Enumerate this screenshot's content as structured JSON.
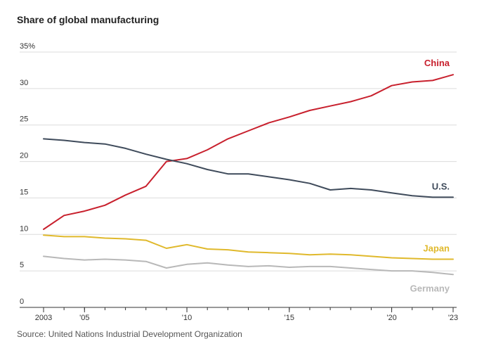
{
  "chart_data": {
    "type": "line",
    "title": "Share of global manufacturing",
    "source": "Source: United Nations Industrial Development Organization",
    "xlabel": "",
    "ylabel": "",
    "ylim": [
      0,
      35
    ],
    "yticks": [
      {
        "value": 0,
        "label": "0"
      },
      {
        "value": 5,
        "label": "5"
      },
      {
        "value": 10,
        "label": "10"
      },
      {
        "value": 15,
        "label": "15"
      },
      {
        "value": 20,
        "label": "20"
      },
      {
        "value": 25,
        "label": "25"
      },
      {
        "value": 30,
        "label": "30"
      },
      {
        "value": 35,
        "label": "35%"
      }
    ],
    "xticks": [
      {
        "value": 2003,
        "label": "2003"
      },
      {
        "value": 2005,
        "label": "'05"
      },
      {
        "value": 2010,
        "label": "'10"
      },
      {
        "value": 2015,
        "label": "'15"
      },
      {
        "value": 2020,
        "label": "'20"
      },
      {
        "value": 2023,
        "label": "'23"
      }
    ],
    "x": [
      2003,
      2004,
      2005,
      2006,
      2007,
      2008,
      2009,
      2010,
      2011,
      2012,
      2013,
      2014,
      2015,
      2016,
      2017,
      2018,
      2019,
      2020,
      2021,
      2022,
      2023
    ],
    "series": [
      {
        "name": "China",
        "color": "#c8202d",
        "values": [
          10.7,
          12.6,
          13.2,
          14.0,
          15.4,
          16.6,
          20.0,
          20.4,
          21.6,
          23.1,
          24.2,
          25.3,
          26.1,
          27.0,
          27.6,
          28.2,
          29.0,
          30.4,
          30.9,
          31.1,
          31.9
        ]
      },
      {
        "name": "U.S.",
        "color": "#3f4b5b",
        "values": [
          23.1,
          22.9,
          22.6,
          22.4,
          21.8,
          21.0,
          20.3,
          19.7,
          18.9,
          18.3,
          18.3,
          17.9,
          17.5,
          17.0,
          16.1,
          16.3,
          16.1,
          15.7,
          15.3,
          15.1,
          15.1
        ]
      },
      {
        "name": "Japan",
        "color": "#e0b92c",
        "values": [
          9.9,
          9.7,
          9.7,
          9.5,
          9.4,
          9.2,
          8.1,
          8.6,
          8.0,
          7.9,
          7.6,
          7.5,
          7.4,
          7.2,
          7.3,
          7.2,
          7.0,
          6.8,
          6.7,
          6.6,
          6.6
        ]
      },
      {
        "name": "Germany",
        "color": "#b8b8b8",
        "values": [
          7.0,
          6.7,
          6.5,
          6.6,
          6.5,
          6.3,
          5.4,
          5.9,
          6.1,
          5.8,
          5.6,
          5.7,
          5.5,
          5.6,
          5.6,
          5.4,
          5.2,
          5.0,
          5.0,
          4.8,
          4.5
        ]
      }
    ]
  }
}
